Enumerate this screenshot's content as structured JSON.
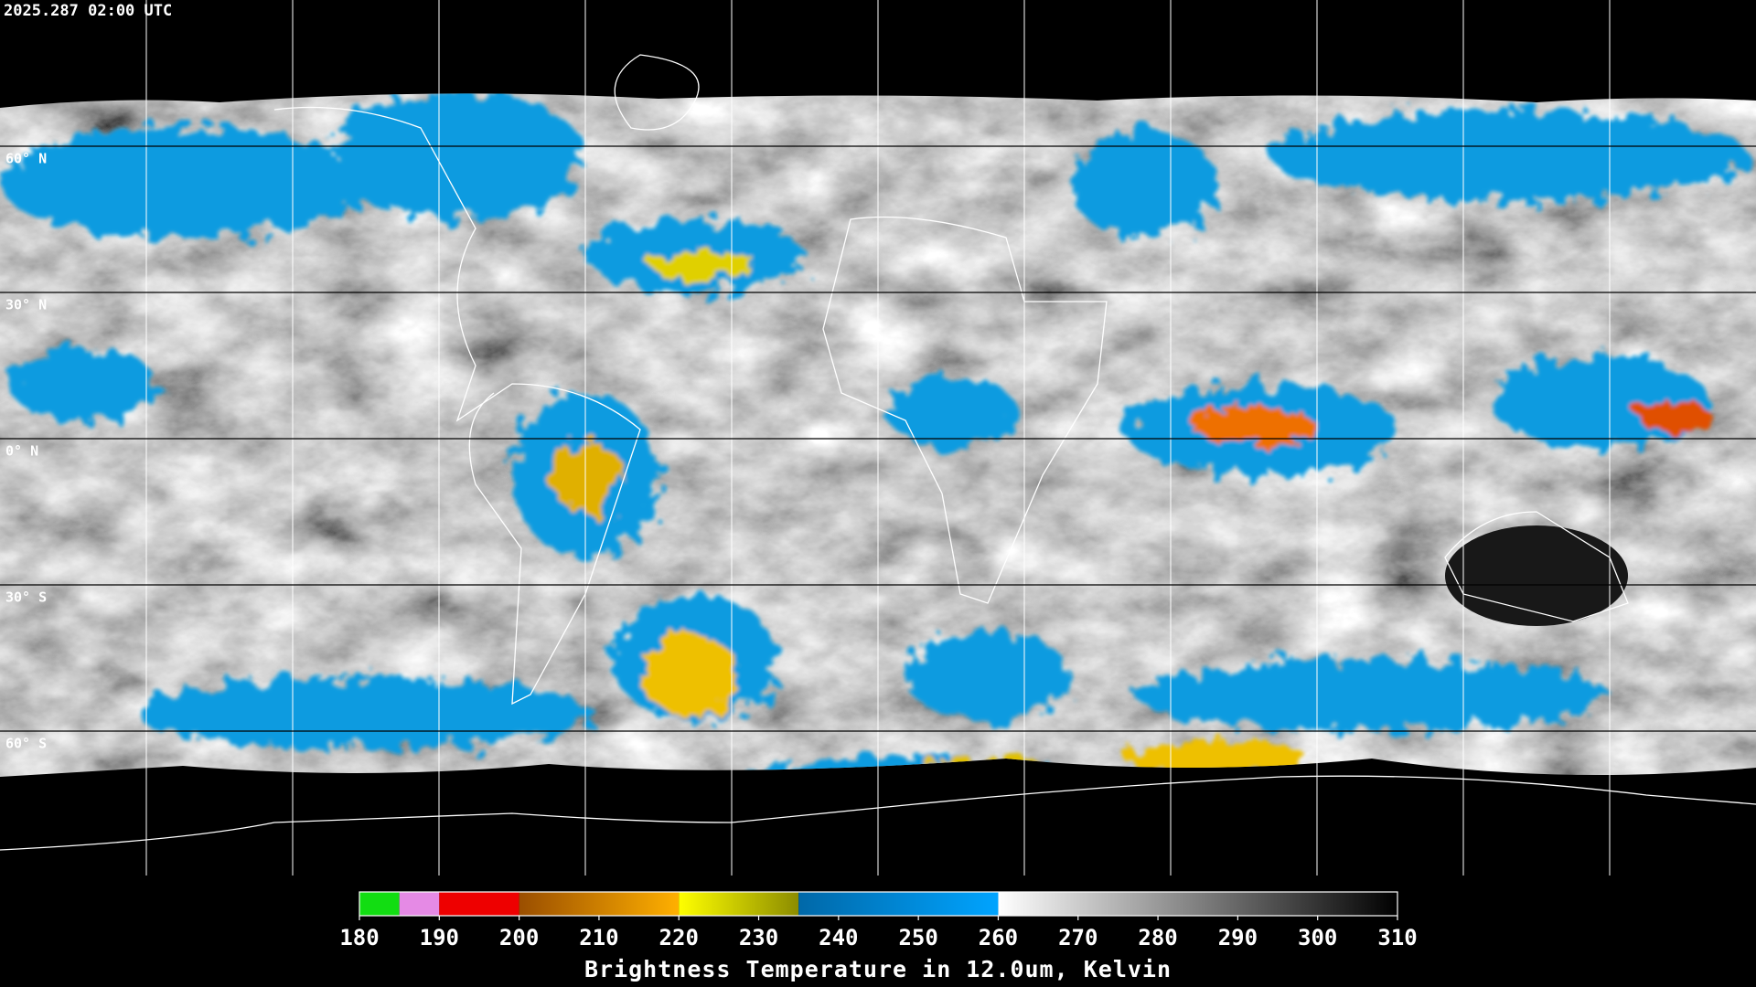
{
  "timestamp": "2025.287 02:00 UTC",
  "latitude_labels": [
    "60° N",
    "30° N",
    "0° N",
    "30° S",
    "60° S"
  ],
  "colorbar": {
    "title": "Brightness Temperature in 12.0um, Kelvin",
    "range": [
      180,
      310
    ],
    "ticks": [
      180,
      190,
      200,
      210,
      220,
      230,
      240,
      250,
      260,
      270,
      280,
      290,
      300,
      310
    ],
    "segments": [
      {
        "from": 180,
        "to": 185,
        "colors": [
          "#12dd12",
          "#12dd12"
        ]
      },
      {
        "from": 185,
        "to": 190,
        "colors": [
          "#e58ae5",
          "#e58ae5"
        ]
      },
      {
        "from": 190,
        "to": 200,
        "colors": [
          "#ee0000",
          "#ee0000"
        ]
      },
      {
        "from": 200,
        "to": 220,
        "colors": [
          "#9a4e00",
          "#ffb000"
        ]
      },
      {
        "from": 220,
        "to": 235,
        "colors": [
          "#ffff00",
          "#8c8c00"
        ]
      },
      {
        "from": 235,
        "to": 260,
        "colors": [
          "#0068a8",
          "#00a4ff"
        ]
      },
      {
        "from": 260,
        "to": 310,
        "colors": [
          "#ffffff",
          "#000000"
        ]
      }
    ]
  }
}
